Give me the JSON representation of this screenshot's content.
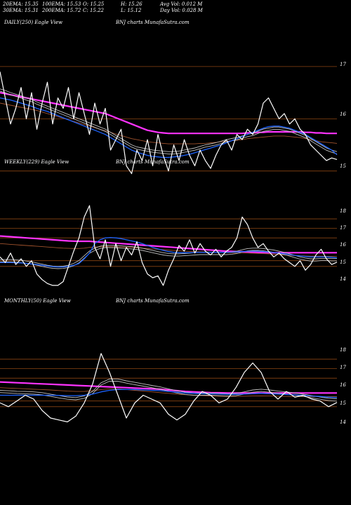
{
  "header": {
    "row1": [
      "20EMA: 15.35",
      "100EMA: 15.53",
      "O: 15.25",
      "H: 15.26",
      "Avg Vol: 0.012  M"
    ],
    "row2": [
      "30EMA: 15.31",
      "200EMA: 15.72",
      "C: 15.22",
      "L: 15.12",
      "Day Vol: 0.028  M"
    ]
  },
  "colors": {
    "background": "#000000",
    "price": "#ffffff",
    "ema_short": "#c0c0c0",
    "ema_mid": "#1e64ff",
    "ema_long": "#ff33ff",
    "ema_brown": "#a0522d",
    "level_line": "#8b4513"
  },
  "chart_data": [
    {
      "type": "line",
      "panel": "daily",
      "label_left": "DAILY(250) Eagle  View",
      "label_mid": "BNJ charts MunafaSutra.com",
      "yticks": [
        "17",
        "16",
        "15"
      ],
      "ylim": [
        14.85,
        17.2
      ],
      "levels": [
        17,
        16,
        15
      ],
      "series": [
        {
          "role": "price",
          "values": [
            16.9,
            16.4,
            15.9,
            16.2,
            16.6,
            16.0,
            16.5,
            15.8,
            16.3,
            16.7,
            15.9,
            16.4,
            16.2,
            16.6,
            16.0,
            16.5,
            16.1,
            15.7,
            16.3,
            15.9,
            16.2,
            15.4,
            15.6,
            15.8,
            15.1,
            14.95,
            15.4,
            15.2,
            15.6,
            15.1,
            15.7,
            15.3,
            15.0,
            15.5,
            15.2,
            15.6,
            15.3,
            15.1,
            15.4,
            15.2,
            15.05,
            15.3,
            15.5,
            15.6,
            15.4,
            15.7,
            15.6,
            15.8,
            15.7,
            15.9,
            16.3,
            16.4,
            16.2,
            16.0,
            16.1,
            15.9,
            16.0,
            15.8,
            15.7,
            15.5,
            15.4,
            15.3,
            15.2,
            15.25,
            15.22
          ]
        },
        {
          "role": "ema_short",
          "values": [
            16.55,
            16.52,
            16.48,
            16.45,
            16.42,
            16.38,
            16.35,
            16.3,
            16.26,
            16.22,
            16.18,
            16.14,
            16.1,
            16.06,
            16.02,
            15.98,
            15.94,
            15.9,
            15.86,
            15.82,
            15.78,
            15.72,
            15.66,
            15.6,
            15.54,
            15.48,
            15.44,
            15.42,
            15.4,
            15.38,
            15.37,
            15.36,
            15.35,
            15.35,
            15.36,
            15.38,
            15.4,
            15.42,
            15.45,
            15.48,
            15.5,
            15.52,
            15.55,
            15.58,
            15.6,
            15.62,
            15.65,
            15.68,
            15.7,
            15.74,
            15.78,
            15.8,
            15.82,
            15.82,
            15.8,
            15.78,
            15.74,
            15.7,
            15.66,
            15.6,
            15.54,
            15.48,
            15.42,
            15.38,
            15.35
          ]
        },
        {
          "role": "ema_mid",
          "values": [
            16.4,
            16.38,
            16.36,
            16.33,
            16.3,
            16.27,
            16.24,
            16.2,
            16.17,
            16.14,
            16.1,
            16.06,
            16.02,
            15.98,
            15.94,
            15.9,
            15.86,
            15.82,
            15.78,
            15.74,
            15.7,
            15.64,
            15.58,
            15.52,
            15.46,
            15.4,
            15.36,
            15.33,
            15.3,
            15.28,
            15.27,
            15.26,
            15.26,
            15.27,
            15.28,
            15.3,
            15.32,
            15.35,
            15.38,
            15.41,
            15.44,
            15.47,
            15.5,
            15.54,
            15.58,
            15.62,
            15.66,
            15.7,
            15.74,
            15.78,
            15.82,
            15.85,
            15.86,
            15.86,
            15.84,
            15.82,
            15.78,
            15.74,
            15.7,
            15.64,
            15.58,
            15.52,
            15.46,
            15.4,
            15.31
          ]
        },
        {
          "role": "ema_long",
          "values": [
            16.5,
            16.48,
            16.46,
            16.44,
            16.42,
            16.4,
            16.38,
            16.36,
            16.34,
            16.32,
            16.3,
            16.28,
            16.26,
            16.24,
            16.22,
            16.2,
            16.18,
            16.16,
            16.14,
            16.12,
            16.1,
            16.06,
            16.02,
            15.98,
            15.94,
            15.9,
            15.86,
            15.82,
            15.78,
            15.76,
            15.74,
            15.73,
            15.72,
            15.72,
            15.72,
            15.72,
            15.72,
            15.72,
            15.72,
            15.72,
            15.72,
            15.72,
            15.72,
            15.72,
            15.72,
            15.72,
            15.72,
            15.73,
            15.73,
            15.74,
            15.74,
            15.75,
            15.75,
            15.75,
            15.75,
            15.75,
            15.75,
            15.75,
            15.74,
            15.74,
            15.73,
            15.73,
            15.72,
            15.72,
            15.72
          ]
        },
        {
          "role": "ema_brown",
          "values": [
            16.3,
            16.28,
            16.26,
            16.24,
            16.22,
            16.2,
            16.18,
            16.16,
            16.13,
            16.1,
            16.07,
            16.04,
            16.01,
            15.98,
            15.95,
            15.92,
            15.89,
            15.86,
            15.83,
            15.8,
            15.77,
            15.74,
            15.71,
            15.68,
            15.65,
            15.62,
            15.6,
            15.58,
            15.56,
            15.55,
            15.54,
            15.53,
            15.52,
            15.52,
            15.52,
            15.52,
            15.52,
            15.52,
            15.53,
            15.53,
            15.54,
            15.55,
            15.56,
            15.57,
            15.58,
            15.59,
            15.6,
            15.62,
            15.63,
            15.64,
            15.65,
            15.66,
            15.67,
            15.67,
            15.67,
            15.66,
            15.65,
            15.64,
            15.62,
            15.6,
            15.58,
            15.56,
            15.55,
            15.54,
            15.53
          ]
        }
      ]
    },
    {
      "type": "line",
      "panel": "weekly",
      "label_left": "WEEKLY(229) Eagle  View",
      "label_mid": "BNJ charts MunafaSutra.com",
      "yticks": [
        "18",
        "17",
        "16",
        "15",
        "14"
      ],
      "ylim": [
        13.7,
        18.5
      ],
      "levels": [
        17.5,
        17,
        16.5,
        15.3,
        15.0
      ],
      "series": [
        {
          "role": "price",
          "values": [
            15.5,
            15.2,
            15.7,
            15.1,
            15.4,
            15.0,
            15.3,
            14.6,
            14.3,
            14.1,
            14.0,
            14.0,
            14.2,
            15.0,
            15.8,
            16.5,
            17.6,
            18.2,
            16.0,
            15.4,
            16.4,
            15.0,
            16.2,
            15.3,
            16.0,
            15.6,
            16.3,
            15.2,
            14.6,
            14.4,
            14.5,
            14.0,
            14.8,
            15.4,
            16.1,
            15.8,
            16.4,
            15.7,
            16.2,
            15.8,
            15.6,
            15.9,
            15.5,
            15.8,
            16.0,
            16.5,
            17.6,
            17.2,
            16.5,
            16.0,
            16.2,
            15.8,
            15.5,
            15.7,
            15.4,
            15.2,
            15.0,
            15.3,
            14.8,
            15.1,
            15.6,
            15.9,
            15.4,
            15.1,
            15.22
          ]
        },
        {
          "role": "ema_short",
          "values": [
            15.3,
            15.3,
            15.3,
            15.28,
            15.26,
            15.22,
            15.18,
            15.12,
            15.06,
            15.0,
            14.96,
            14.94,
            14.95,
            15.0,
            15.1,
            15.25,
            15.5,
            15.75,
            15.9,
            16.0,
            16.05,
            16.05,
            16.04,
            16.02,
            16.0,
            15.98,
            15.95,
            15.9,
            15.84,
            15.78,
            15.72,
            15.66,
            15.62,
            15.6,
            15.6,
            15.62,
            15.64,
            15.66,
            15.68,
            15.68,
            15.68,
            15.68,
            15.68,
            15.68,
            15.7,
            15.74,
            15.82,
            15.88,
            15.9,
            15.9,
            15.88,
            15.84,
            15.8,
            15.74,
            15.68,
            15.6,
            15.52,
            15.44,
            15.38,
            15.34,
            15.34,
            15.36,
            15.36,
            15.35,
            15.35
          ]
        },
        {
          "role": "ema_mid",
          "values": [
            15.2,
            15.2,
            15.2,
            15.19,
            15.18,
            15.16,
            15.13,
            15.1,
            15.06,
            15.02,
            14.99,
            14.97,
            14.97,
            15.0,
            15.06,
            15.15,
            15.4,
            15.7,
            16.2,
            16.4,
            16.5,
            16.52,
            16.5,
            16.46,
            16.4,
            16.34,
            16.28,
            16.2,
            16.1,
            16.0,
            15.92,
            15.84,
            15.78,
            15.74,
            15.72,
            15.72,
            15.72,
            15.73,
            15.74,
            15.74,
            15.74,
            15.74,
            15.74,
            15.74,
            15.75,
            15.76,
            15.78,
            15.8,
            15.8,
            15.8,
            15.78,
            15.76,
            15.73,
            15.7,
            15.66,
            15.62,
            15.58,
            15.55,
            15.52,
            15.5,
            15.5,
            15.5,
            15.5,
            15.48,
            15.45
          ]
        },
        {
          "role": "ema_long",
          "values": [
            16.6,
            16.58,
            16.56,
            16.54,
            16.52,
            16.5,
            16.48,
            16.46,
            16.44,
            16.42,
            16.4,
            16.38,
            16.36,
            16.34,
            16.33,
            16.32,
            16.32,
            16.32,
            16.3,
            16.28,
            16.26,
            16.24,
            16.22,
            16.2,
            16.18,
            16.16,
            16.14,
            16.12,
            16.1,
            16.08,
            16.06,
            16.04,
            16.02,
            16.0,
            15.98,
            15.96,
            15.94,
            15.92,
            15.9,
            15.88,
            15.86,
            15.84,
            15.82,
            15.8,
            15.79,
            15.78,
            15.77,
            15.76,
            15.75,
            15.74,
            15.73,
            15.72,
            15.72,
            15.72,
            15.72,
            15.72,
            15.72,
            15.72,
            15.72,
            15.72,
            15.72,
            15.72,
            15.72,
            15.72,
            15.72
          ]
        },
        {
          "role": "ema_brown",
          "values": [
            16.2,
            16.18,
            16.16,
            16.14,
            16.12,
            16.1,
            16.08,
            16.06,
            16.04,
            16.02,
            16.0,
            15.98,
            15.96,
            15.95,
            15.94,
            15.94,
            15.96,
            16.0,
            16.02,
            16.03,
            16.04,
            16.04,
            16.03,
            16.02,
            16.01,
            16.0,
            15.98,
            15.96,
            15.94,
            15.92,
            15.9,
            15.88,
            15.86,
            15.84,
            15.82,
            15.8,
            15.79,
            15.78,
            15.77,
            15.76,
            15.75,
            15.74,
            15.73,
            15.72,
            15.71,
            15.7,
            15.7,
            15.7,
            15.69,
            15.68,
            15.67,
            15.66,
            15.64,
            15.62,
            15.6,
            15.58,
            15.57,
            15.56,
            15.55,
            15.54,
            15.54,
            15.54,
            15.53,
            15.53,
            15.53
          ]
        }
      ]
    },
    {
      "type": "line",
      "panel": "monthly",
      "label_left": "MONTHLY(50) Eagle  View",
      "label_mid": "BNJ charts MunafaSutra.com",
      "yticks": [
        "18",
        "17",
        "16",
        "15",
        "14"
      ],
      "ylim": [
        13.7,
        18.5
      ],
      "levels": [
        17.5,
        17,
        16.5,
        15.3,
        15.0
      ],
      "series": [
        {
          "role": "price",
          "values": [
            15.2,
            15.0,
            15.3,
            15.6,
            15.4,
            14.8,
            14.4,
            14.3,
            14.2,
            14.5,
            15.2,
            16.2,
            17.8,
            16.8,
            15.6,
            14.4,
            15.2,
            15.6,
            15.4,
            15.2,
            14.6,
            14.3,
            14.6,
            15.3,
            15.8,
            15.6,
            15.2,
            15.4,
            16.0,
            16.8,
            17.3,
            16.8,
            15.8,
            15.4,
            15.8,
            15.5,
            15.6,
            15.4,
            15.3,
            15.0,
            15.22
          ]
        },
        {
          "role": "ema_short",
          "values": [
            15.8,
            15.78,
            15.75,
            15.74,
            15.72,
            15.68,
            15.6,
            15.52,
            15.45,
            15.42,
            15.5,
            15.75,
            16.2,
            16.4,
            16.4,
            16.3,
            16.22,
            16.14,
            16.06,
            15.98,
            15.88,
            15.78,
            15.7,
            15.66,
            15.66,
            15.66,
            15.64,
            15.62,
            15.64,
            15.72,
            15.82,
            15.86,
            15.82,
            15.76,
            15.72,
            15.66,
            15.6,
            15.52,
            15.45,
            15.38,
            15.35
          ]
        },
        {
          "role": "ema_mid",
          "values": [
            15.6,
            15.6,
            15.6,
            15.6,
            15.6,
            15.6,
            15.6,
            15.59,
            15.58,
            15.58,
            15.6,
            15.66,
            15.78,
            15.86,
            15.9,
            15.9,
            15.9,
            15.88,
            15.86,
            15.84,
            15.8,
            15.76,
            15.72,
            15.7,
            15.68,
            15.67,
            15.66,
            15.65,
            15.65,
            15.66,
            15.68,
            15.7,
            15.68,
            15.66,
            15.64,
            15.62,
            15.6,
            15.56,
            15.54,
            15.5,
            15.48
          ]
        },
        {
          "role": "ema_long",
          "values": [
            16.3,
            16.28,
            16.26,
            16.24,
            16.22,
            16.2,
            16.18,
            16.16,
            16.14,
            16.12,
            16.1,
            16.08,
            16.06,
            16.04,
            16.02,
            16.0,
            15.98,
            15.96,
            15.94,
            15.92,
            15.88,
            15.84,
            15.8,
            15.78,
            15.76,
            15.74,
            15.73,
            15.72,
            15.72,
            15.72,
            15.72,
            15.72,
            15.72,
            15.72,
            15.72,
            15.72,
            15.72,
            15.72,
            15.72,
            15.72,
            15.72
          ]
        },
        {
          "role": "ema_brown",
          "values": [
            16.0,
            15.98,
            15.96,
            15.94,
            15.92,
            15.9,
            15.88,
            15.85,
            15.82,
            15.8,
            15.8,
            15.84,
            15.9,
            15.94,
            15.94,
            15.9,
            15.86,
            15.82,
            15.78,
            15.74,
            15.7,
            15.66,
            15.63,
            15.6,
            15.58,
            15.56,
            15.55,
            15.54,
            15.54,
            15.55,
            15.56,
            15.57,
            15.56,
            15.55,
            15.54,
            15.53,
            15.53,
            15.53,
            15.53,
            15.53,
            15.53
          ]
        }
      ]
    }
  ]
}
